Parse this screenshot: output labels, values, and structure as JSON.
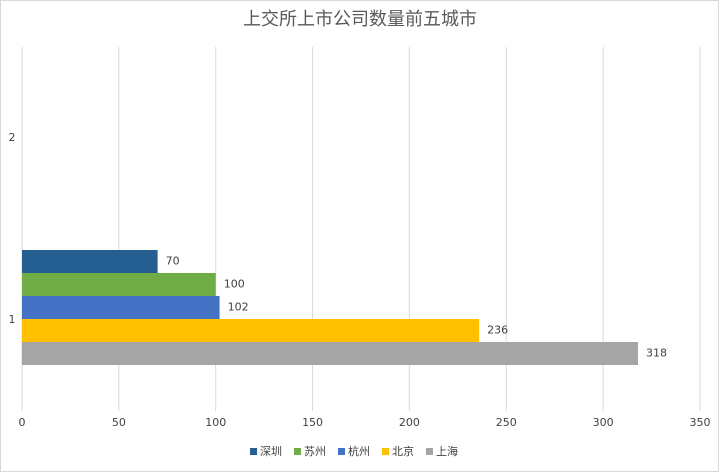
{
  "chart_data": {
    "type": "bar",
    "orientation": "horizontal",
    "title": "上交所上市公司数量前五城市",
    "categories": [
      "1",
      "2"
    ],
    "series": [
      {
        "name": "深圳",
        "color": "#255e91",
        "values": [
          70,
          null
        ]
      },
      {
        "name": "苏州",
        "color": "#70ad47",
        "values": [
          100,
          null
        ]
      },
      {
        "name": "杭州",
        "color": "#4472c4",
        "values": [
          102,
          null
        ]
      },
      {
        "name": "北京",
        "color": "#ffc000",
        "values": [
          236,
          null
        ]
      },
      {
        "name": "上海",
        "color": "#a5a5a5",
        "values": [
          318,
          null
        ]
      }
    ],
    "xlim": [
      0,
      350
    ],
    "xticks": [
      0,
      50,
      100,
      150,
      200,
      250,
      300,
      350
    ],
    "grid": true,
    "legend": "bottom"
  }
}
